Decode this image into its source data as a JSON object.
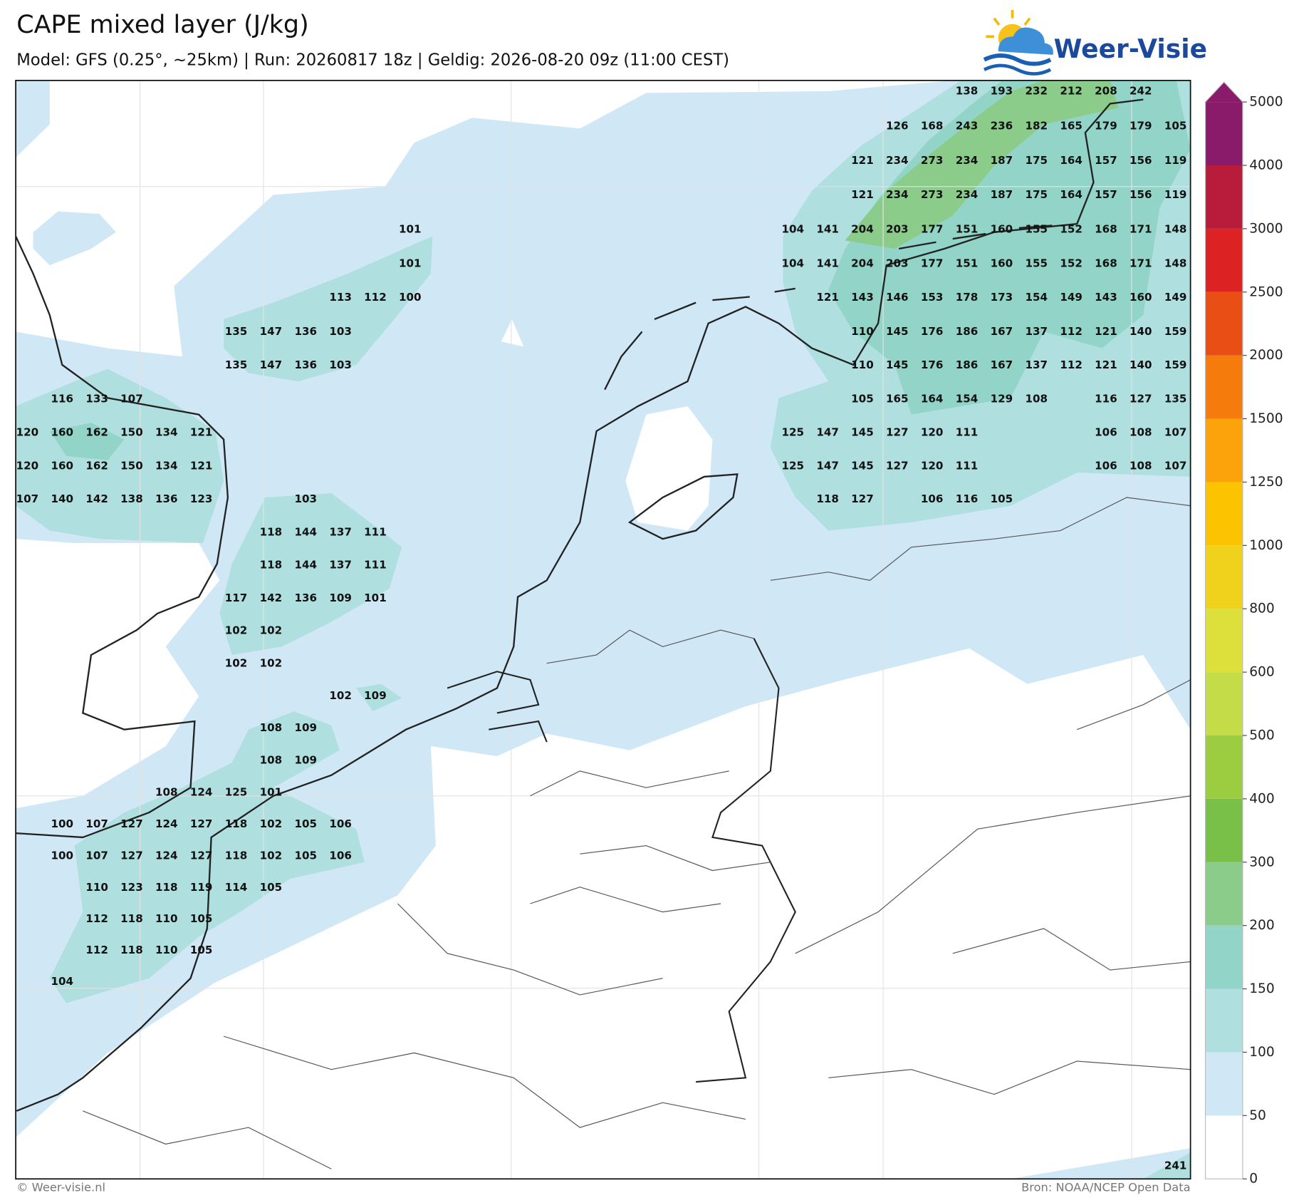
{
  "header": {
    "title": "CAPE mixed layer (J/kg)",
    "subtitle": "Model: GFS (0.25°, ~25km)  |  Run: 20260817 18z  |  Geldig: 2026-08-20 09z (11:00 CEST)",
    "logo": "Weer-Visie"
  },
  "map": {
    "grid_rows": [
      [
        null,
        null,
        null,
        null,
        null,
        null,
        null,
        null,
        null,
        null,
        null,
        null,
        null,
        null,
        null,
        null,
        null,
        null,
        null,
        null,
        null,
        null,
        null,
        null,
        null,
        null,
        null,
        138,
        193,
        232,
        212,
        208,
        242,
        null
      ],
      [
        null,
        null,
        null,
        null,
        null,
        null,
        null,
        null,
        null,
        null,
        null,
        null,
        null,
        null,
        null,
        null,
        null,
        null,
        null,
        null,
        null,
        null,
        null,
        null,
        null,
        126,
        168,
        243,
        236,
        182,
        165,
        179,
        179,
        105
      ],
      [
        null,
        null,
        null,
        null,
        null,
        null,
        null,
        null,
        null,
        null,
        null,
        null,
        null,
        null,
        null,
        null,
        null,
        null,
        null,
        null,
        null,
        null,
        null,
        null,
        121,
        234,
        273,
        234,
        187,
        175,
        164,
        157,
        156,
        119
      ],
      [
        null,
        null,
        null,
        null,
        null,
        null,
        null,
        null,
        null,
        null,
        null,
        null,
        null,
        null,
        null,
        null,
        null,
        null,
        null,
        null,
        null,
        null,
        null,
        null,
        121,
        234,
        273,
        234,
        187,
        175,
        164,
        157,
        156,
        119
      ],
      [
        null,
        null,
        null,
        null,
        null,
        null,
        null,
        null,
        null,
        null,
        null,
        101,
        null,
        null,
        null,
        null,
        null,
        null,
        null,
        null,
        null,
        null,
        104,
        141,
        204,
        203,
        177,
        151,
        160,
        155,
        152,
        168,
        171,
        148
      ],
      [
        null,
        null,
        null,
        null,
        null,
        null,
        null,
        null,
        null,
        null,
        null,
        101,
        null,
        null,
        null,
        null,
        null,
        null,
        null,
        null,
        null,
        null,
        104,
        141,
        204,
        203,
        177,
        151,
        160,
        155,
        152,
        168,
        171,
        148
      ],
      [
        null,
        null,
        null,
        null,
        null,
        null,
        null,
        null,
        null,
        113,
        112,
        100,
        null,
        null,
        null,
        null,
        null,
        null,
        null,
        null,
        null,
        null,
        null,
        121,
        143,
        146,
        153,
        178,
        173,
        154,
        149,
        143,
        160,
        149
      ],
      [
        null,
        null,
        null,
        null,
        null,
        null,
        135,
        147,
        136,
        103,
        null,
        null,
        null,
        null,
        null,
        null,
        null,
        null,
        null,
        null,
        null,
        null,
        null,
        null,
        110,
        145,
        176,
        186,
        167,
        137,
        112,
        121,
        140,
        159
      ],
      [
        null,
        null,
        null,
        null,
        null,
        null,
        135,
        147,
        136,
        103,
        null,
        null,
        null,
        null,
        null,
        null,
        null,
        null,
        null,
        null,
        null,
        null,
        null,
        null,
        110,
        145,
        176,
        186,
        167,
        137,
        112,
        121,
        140,
        159
      ],
      [
        null,
        116,
        133,
        107,
        null,
        null,
        null,
        null,
        null,
        null,
        null,
        null,
        null,
        null,
        null,
        null,
        null,
        null,
        null,
        null,
        null,
        null,
        null,
        null,
        105,
        165,
        164,
        154,
        129,
        108,
        null,
        116,
        127,
        135
      ],
      [
        120,
        160,
        162,
        150,
        134,
        121,
        null,
        null,
        null,
        null,
        null,
        null,
        null,
        null,
        null,
        null,
        null,
        null,
        null,
        null,
        null,
        null,
        125,
        147,
        145,
        127,
        120,
        111,
        null,
        null,
        null,
        106,
        108,
        107
      ],
      [
        120,
        160,
        162,
        150,
        134,
        121,
        null,
        null,
        null,
        null,
        null,
        null,
        null,
        null,
        null,
        null,
        null,
        null,
        null,
        null,
        null,
        null,
        125,
        147,
        145,
        127,
        120,
        111,
        null,
        null,
        null,
        106,
        108,
        107
      ],
      [
        107,
        140,
        142,
        138,
        136,
        123,
        null,
        null,
        103,
        null,
        null,
        null,
        null,
        null,
        null,
        null,
        null,
        null,
        null,
        null,
        null,
        null,
        null,
        118,
        127,
        null,
        106,
        116,
        105,
        null,
        null,
        null,
        null,
        null
      ],
      [
        null,
        null,
        null,
        null,
        null,
        null,
        null,
        118,
        144,
        137,
        111,
        null,
        null,
        null,
        null,
        null,
        null,
        null,
        null,
        null,
        null,
        null,
        null,
        null,
        null,
        null,
        null,
        null,
        null,
        null,
        null,
        null,
        null,
        null
      ],
      [
        null,
        null,
        null,
        null,
        null,
        null,
        null,
        118,
        144,
        137,
        111,
        null,
        null,
        null,
        null,
        null,
        null,
        null,
        null,
        null,
        null,
        null,
        null,
        null,
        null,
        null,
        null,
        null,
        null,
        null,
        null,
        null,
        null,
        null
      ],
      [
        null,
        null,
        null,
        null,
        null,
        null,
        117,
        142,
        136,
        109,
        101,
        null,
        null,
        null,
        null,
        null,
        null,
        null,
        null,
        null,
        null,
        null,
        null,
        null,
        null,
        null,
        null,
        null,
        null,
        null,
        null,
        null,
        null,
        null
      ],
      [
        null,
        null,
        null,
        null,
        null,
        null,
        102,
        102,
        null,
        null,
        null,
        null,
        null,
        null,
        null,
        null,
        null,
        null,
        null,
        null,
        null,
        null,
        null,
        null,
        null,
        null,
        null,
        null,
        null,
        null,
        null,
        null,
        null,
        null
      ],
      [
        null,
        null,
        null,
        null,
        null,
        null,
        102,
        102,
        null,
        null,
        null,
        null,
        null,
        null,
        null,
        null,
        null,
        null,
        null,
        null,
        null,
        null,
        null,
        null,
        null,
        null,
        null,
        null,
        null,
        null,
        null,
        null,
        null,
        null
      ],
      [
        null,
        null,
        null,
        null,
        null,
        null,
        null,
        null,
        null,
        102,
        109,
        null,
        null,
        null,
        null,
        null,
        null,
        null,
        null,
        null,
        null,
        null,
        null,
        null,
        null,
        null,
        null,
        null,
        null,
        null,
        null,
        null,
        null,
        null
      ],
      [
        null,
        null,
        null,
        null,
        null,
        null,
        null,
        108,
        109,
        null,
        null,
        null,
        null,
        null,
        null,
        null,
        null,
        null,
        null,
        null,
        null,
        null,
        null,
        null,
        null,
        null,
        null,
        null,
        null,
        null,
        null,
        null,
        null,
        null
      ],
      [
        null,
        null,
        null,
        null,
        null,
        null,
        null,
        108,
        109,
        null,
        null,
        null,
        null,
        null,
        null,
        null,
        null,
        null,
        null,
        null,
        null,
        null,
        null,
        null,
        null,
        null,
        null,
        null,
        null,
        null,
        null,
        null,
        null,
        null
      ],
      [
        null,
        null,
        null,
        null,
        108,
        124,
        125,
        101,
        null,
        null,
        null,
        null,
        null,
        null,
        null,
        null,
        null,
        null,
        null,
        null,
        null,
        null,
        null,
        null,
        null,
        null,
        null,
        null,
        null,
        null,
        null,
        null,
        null,
        null
      ],
      [
        null,
        100,
        107,
        127,
        124,
        127,
        118,
        102,
        105,
        106,
        null,
        null,
        null,
        null,
        null,
        null,
        null,
        null,
        null,
        null,
        null,
        null,
        null,
        null,
        null,
        null,
        null,
        null,
        null,
        null,
        null,
        null,
        null,
        null
      ],
      [
        null,
        100,
        107,
        127,
        124,
        127,
        118,
        102,
        105,
        106,
        null,
        null,
        null,
        null,
        null,
        null,
        null,
        null,
        null,
        null,
        null,
        null,
        null,
        null,
        null,
        null,
        null,
        null,
        null,
        null,
        null,
        null,
        null,
        null
      ],
      [
        null,
        null,
        110,
        123,
        118,
        119,
        114,
        105,
        null,
        null,
        null,
        null,
        null,
        null,
        null,
        null,
        null,
        null,
        null,
        null,
        null,
        null,
        null,
        null,
        null,
        null,
        null,
        null,
        null,
        null,
        null,
        null,
        null,
        null
      ],
      [
        null,
        null,
        112,
        118,
        110,
        105,
        null,
        null,
        null,
        null,
        null,
        null,
        null,
        null,
        null,
        null,
        null,
        null,
        null,
        null,
        null,
        null,
        null,
        null,
        null,
        null,
        null,
        null,
        null,
        null,
        null,
        null,
        null,
        null
      ],
      [
        null,
        null,
        112,
        118,
        110,
        105,
        null,
        null,
        null,
        null,
        null,
        null,
        null,
        null,
        null,
        null,
        null,
        null,
        null,
        null,
        null,
        null,
        null,
        null,
        null,
        null,
        null,
        null,
        null,
        null,
        null,
        null,
        null,
        null
      ],
      [
        null,
        104,
        null,
        null,
        null,
        null,
        null,
        null,
        null,
        null,
        null,
        null,
        null,
        null,
        null,
        null,
        null,
        null,
        null,
        null,
        null,
        null,
        null,
        null,
        null,
        null,
        null,
        null,
        null,
        null,
        null,
        null,
        null,
        null
      ],
      [
        null,
        null,
        null,
        null,
        null,
        null,
        null,
        null,
        null,
        null,
        null,
        null,
        null,
        null,
        null,
        null,
        null,
        null,
        null,
        null,
        null,
        null,
        null,
        null,
        null,
        null,
        null,
        null,
        null,
        null,
        null,
        null,
        null,
        null
      ],
      [
        null,
        null,
        null,
        null,
        null,
        null,
        null,
        null,
        null,
        null,
        null,
        null,
        null,
        null,
        null,
        null,
        null,
        null,
        null,
        null,
        null,
        null,
        null,
        null,
        null,
        null,
        null,
        null,
        null,
        null,
        null,
        null,
        null,
        null
      ],
      [
        null,
        null,
        null,
        null,
        null,
        null,
        null,
        null,
        null,
        null,
        null,
        null,
        null,
        null,
        null,
        null,
        null,
        null,
        null,
        null,
        null,
        null,
        null,
        null,
        null,
        null,
        null,
        null,
        null,
        null,
        null,
        null,
        null,
        null
      ],
      [
        null,
        null,
        null,
        null,
        null,
        null,
        null,
        null,
        null,
        null,
        null,
        null,
        null,
        null,
        null,
        null,
        null,
        null,
        null,
        null,
        null,
        null,
        null,
        null,
        null,
        null,
        null,
        null,
        null,
        null,
        null,
        null,
        null,
        null
      ],
      [
        null,
        null,
        null,
        null,
        null,
        null,
        null,
        null,
        null,
        null,
        null,
        null,
        null,
        null,
        null,
        null,
        null,
        null,
        null,
        null,
        null,
        null,
        null,
        null,
        null,
        null,
        null,
        null,
        null,
        null,
        null,
        null,
        null,
        null
      ],
      [
        null,
        null,
        null,
        null,
        null,
        null,
        null,
        null,
        null,
        null,
        null,
        null,
        null,
        null,
        null,
        null,
        null,
        null,
        null,
        null,
        null,
        null,
        null,
        null,
        null,
        null,
        null,
        null,
        null,
        null,
        null,
        null,
        null,
        241
      ]
    ]
  },
  "colorbar": {
    "ticks": [
      0,
      50,
      100,
      150,
      200,
      300,
      400,
      500,
      600,
      800,
      1000,
      1250,
      1500,
      2000,
      2500,
      3000,
      4000,
      5000
    ],
    "colors": [
      "#ffffff",
      "#d0e7f6",
      "#b0dfe0",
      "#93d4c8",
      "#8ccc8a",
      "#78c048",
      "#9ccd40",
      "#c4dc48",
      "#dde03a",
      "#f0d21c",
      "#fcc400",
      "#fca20a",
      "#f57c0c",
      "#e94e14",
      "#dc2222",
      "#b81c3a",
      "#8a1a6a"
    ],
    "extend_color": "#8a1a6a"
  },
  "footer": {
    "left": "© Weer-visie.nl",
    "right": "Bron: NOAA/NCEP Open Data"
  }
}
